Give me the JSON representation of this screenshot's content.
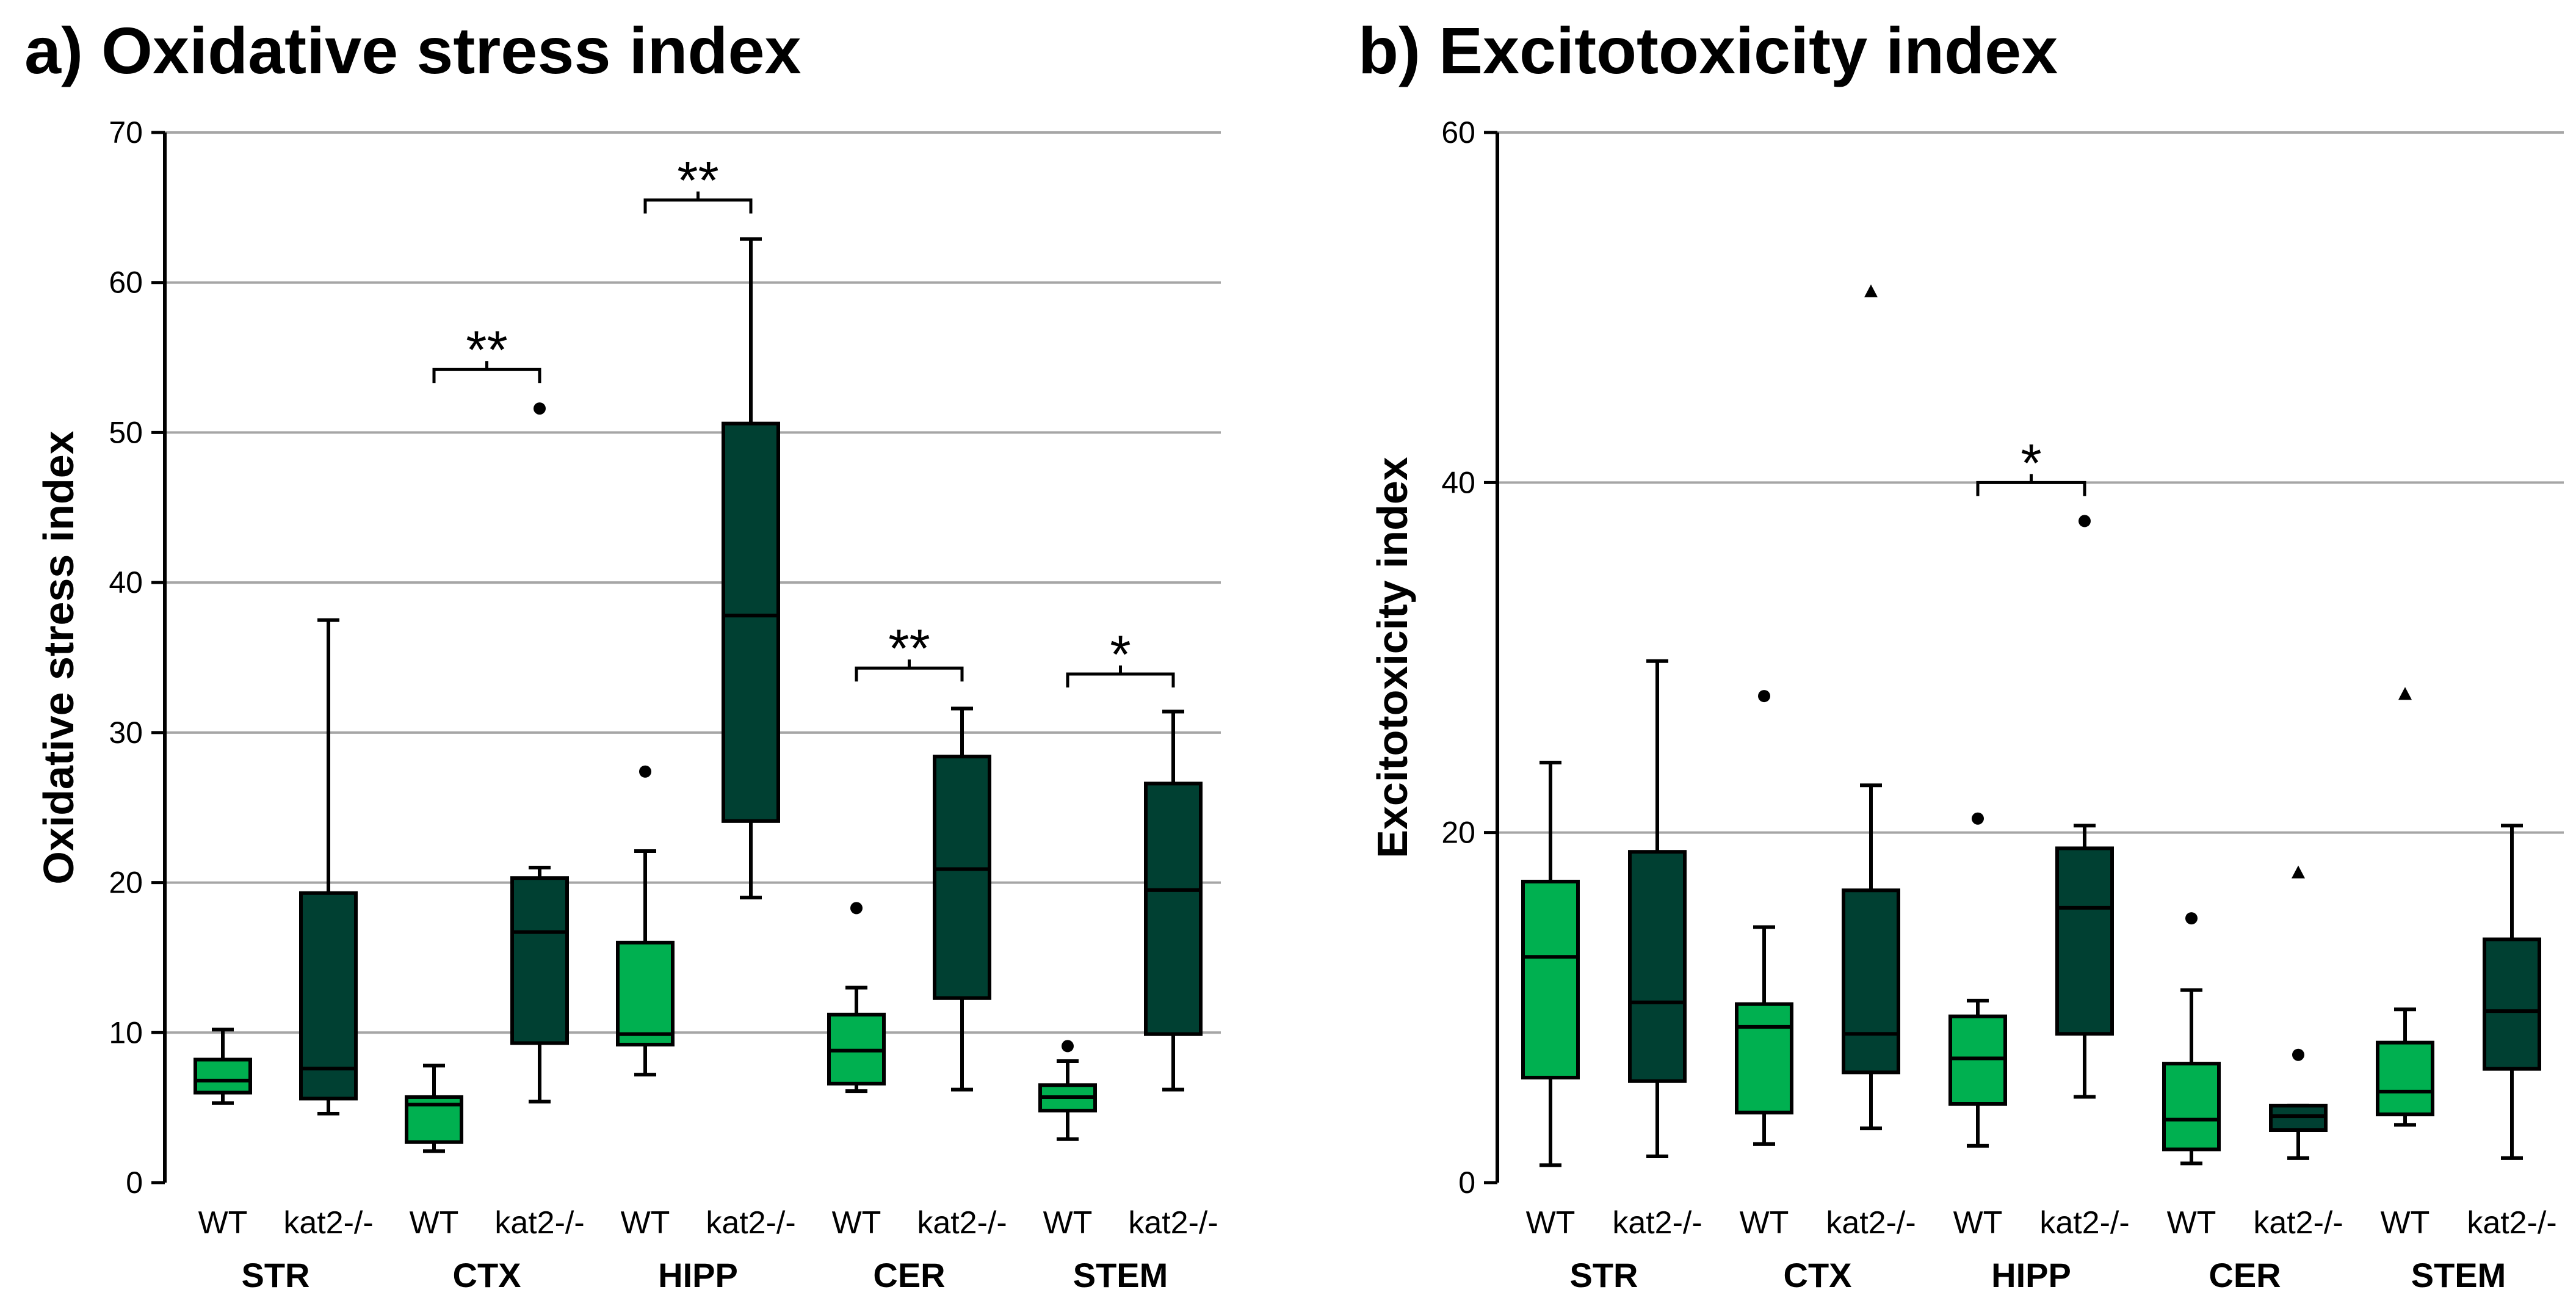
{
  "colors": {
    "wt": "#00b050",
    "kat2": "#004032",
    "outline": "#000000",
    "grid": "#a6a6a6"
  },
  "chart_data": [
    {
      "type": "box",
      "title": "a) Oxidative stress index",
      "ylabel": "Oxidative stress index",
      "xlabel": "",
      "ylim": [
        0,
        70
      ],
      "yticks": [
        "0",
        "10",
        "20",
        "30",
        "40",
        "50",
        "60",
        "70"
      ],
      "grid": true,
      "groups": [
        "STR",
        "CTX",
        "HIPP",
        "CER",
        "STEM"
      ],
      "series_labels": [
        "WT",
        "kat2-/-"
      ],
      "boxes": [
        {
          "group": "STR",
          "label": "WT",
          "series": "wt",
          "min": 5.3,
          "q1": 6.0,
          "median": 6.8,
          "q3": 8.2,
          "max": 10.2,
          "outliers": []
        },
        {
          "group": "STR",
          "label": "kat2-/-",
          "series": "kat2",
          "min": 4.6,
          "q1": 5.6,
          "median": 7.6,
          "q3": 19.3,
          "max": 37.5,
          "outliers": []
        },
        {
          "group": "CTX",
          "label": "WT",
          "series": "wt",
          "min": 2.1,
          "q1": 2.7,
          "median": 5.2,
          "q3": 5.7,
          "max": 7.8,
          "outliers": []
        },
        {
          "group": "CTX",
          "label": "kat2-/-",
          "series": "kat2",
          "min": 5.4,
          "q1": 9.3,
          "median": 16.7,
          "q3": 20.3,
          "max": 21.0,
          "outliers": [
            51.6
          ]
        },
        {
          "group": "HIPP",
          "label": "WT",
          "series": "wt",
          "min": 7.2,
          "q1": 9.2,
          "median": 9.9,
          "q3": 16.0,
          "max": 22.1,
          "outliers": [
            27.4
          ]
        },
        {
          "group": "HIPP",
          "label": "kat2-/-",
          "series": "kat2",
          "min": 19.0,
          "q1": 24.1,
          "median": 37.8,
          "q3": 50.6,
          "max": 62.9,
          "outliers": []
        },
        {
          "group": "CER",
          "label": "WT",
          "series": "wt",
          "min": 6.1,
          "q1": 6.6,
          "median": 8.8,
          "q3": 11.2,
          "max": 13.0,
          "outliers": [
            18.3
          ]
        },
        {
          "group": "CER",
          "label": "kat2-/-",
          "series": "kat2",
          "min": 6.2,
          "q1": 12.3,
          "median": 20.9,
          "q3": 28.4,
          "max": 31.6,
          "outliers": []
        },
        {
          "group": "STEM",
          "label": "WT",
          "series": "wt",
          "min": 2.9,
          "q1": 4.8,
          "median": 5.7,
          "q3": 6.5,
          "max": 8.1,
          "outliers": [
            9.1
          ]
        },
        {
          "group": "STEM",
          "label": "kat2-/-",
          "series": "kat2",
          "min": 6.2,
          "q1": 9.9,
          "median": 19.5,
          "q3": 26.6,
          "max": 31.4,
          "outliers": []
        }
      ],
      "significance": [
        {
          "group": "CTX",
          "y": 54.2,
          "label": "**"
        },
        {
          "group": "HIPP",
          "y": 65.5,
          "label": "**"
        },
        {
          "group": "CER",
          "y": 34.3,
          "label": "**"
        },
        {
          "group": "STEM",
          "y": 33.9,
          "label": "*"
        }
      ]
    },
    {
      "type": "box",
      "title": "b) Excitotoxicity index",
      "ylabel": "Excitotoxicity index",
      "xlabel": "",
      "ylim": [
        0,
        60
      ],
      "yticks": [
        "0",
        "20",
        "40",
        "60"
      ],
      "grid": true,
      "groups": [
        "STR",
        "CTX",
        "HIPP",
        "CER",
        "STEM"
      ],
      "series_labels": [
        "WT",
        "kat2-/-"
      ],
      "boxes": [
        {
          "group": "STR",
          "label": "WT",
          "series": "wt",
          "min": 1.0,
          "q1": 6.0,
          "median": 12.9,
          "q3": 17.2,
          "max": 24.0,
          "outliers": []
        },
        {
          "group": "STR",
          "label": "kat2-/-",
          "series": "kat2",
          "min": 1.5,
          "q1": 5.8,
          "median": 10.3,
          "q3": 18.9,
          "max": 29.8,
          "outliers": []
        },
        {
          "group": "CTX",
          "label": "WT",
          "series": "wt",
          "min": 2.2,
          "q1": 4.0,
          "median": 8.9,
          "q3": 10.2,
          "max": 14.6,
          "outliers": [
            27.8
          ]
        },
        {
          "group": "CTX",
          "label": "kat2-/-",
          "series": "kat2",
          "min": 3.1,
          "q1": 6.3,
          "median": 8.5,
          "q3": 16.7,
          "max": 22.7,
          "outliers": [],
          "extremes": [
            50.9
          ]
        },
        {
          "group": "HIPP",
          "label": "WT",
          "series": "wt",
          "min": 2.1,
          "q1": 4.5,
          "median": 7.1,
          "q3": 9.5,
          "max": 10.4,
          "outliers": [
            20.8
          ]
        },
        {
          "group": "HIPP",
          "label": "kat2-/-",
          "series": "kat2",
          "min": 4.9,
          "q1": 8.5,
          "median": 15.7,
          "q3": 19.1,
          "max": 20.4,
          "outliers": [
            37.8
          ]
        },
        {
          "group": "CER",
          "label": "WT",
          "series": "wt",
          "min": 1.1,
          "q1": 1.9,
          "median": 3.6,
          "q3": 6.8,
          "max": 11.0,
          "outliers": [
            15.1
          ]
        },
        {
          "group": "CER",
          "label": "kat2-/-",
          "series": "kat2",
          "min": 1.4,
          "q1": 3.0,
          "median": 3.8,
          "q3": 4.4,
          "max": 4.4,
          "outliers": [
            7.3
          ],
          "extremes": [
            17.7
          ]
        },
        {
          "group": "STEM",
          "label": "WT",
          "series": "wt",
          "min": 3.3,
          "q1": 3.9,
          "median": 5.2,
          "q3": 8.0,
          "max": 9.9,
          "outliers": [],
          "extremes": [
            27.9
          ]
        },
        {
          "group": "STEM",
          "label": "kat2-/-",
          "series": "kat2",
          "min": 1.4,
          "q1": 6.5,
          "median": 9.8,
          "q3": 13.9,
          "max": 20.4,
          "outliers": []
        }
      ],
      "significance": [
        {
          "group": "HIPP",
          "y": 40.0,
          "label": "*"
        }
      ]
    }
  ]
}
